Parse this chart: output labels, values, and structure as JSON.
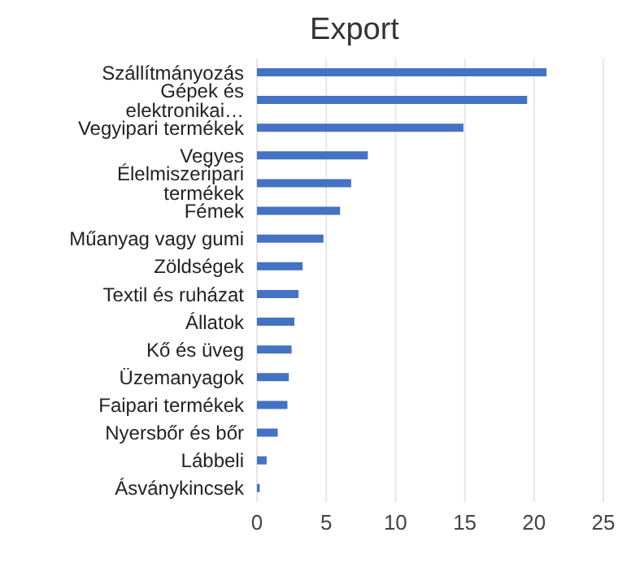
{
  "chart_data": {
    "type": "bar",
    "orientation": "horizontal",
    "title": "Export",
    "categories": [
      "Szállítmányozás",
      "Gépek és elektronikai…",
      "Vegyipari termékek",
      "Vegyes",
      "Élelmiszeripari termékek",
      "Fémek",
      "Műanyag vagy gumi",
      "Zöldségek",
      "Textil és ruházat",
      "Állatok",
      "Kő és üveg",
      "Üzemanyagok",
      "Faipari termékek",
      "Nyersbőr és bőr",
      "Lábbeli",
      "Ásványkincsek"
    ],
    "values": [
      20.9,
      19.5,
      14.9,
      8.0,
      6.8,
      6.0,
      4.8,
      3.3,
      3.0,
      2.7,
      2.5,
      2.3,
      2.2,
      1.5,
      0.7,
      0.2
    ],
    "color": "#4472c4",
    "xlim": [
      0,
      25
    ],
    "xticks": [
      0,
      5,
      10,
      15,
      20,
      25
    ],
    "grid": "x"
  }
}
